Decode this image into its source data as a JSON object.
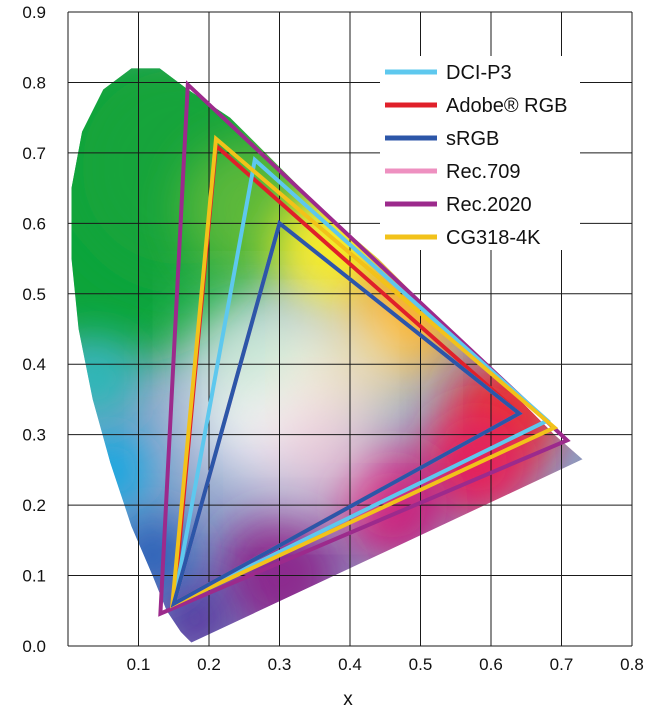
{
  "chart_data": {
    "type": "scatter",
    "title": "",
    "xlabel": "x",
    "ylabel": "",
    "xlim": [
      0,
      0.8
    ],
    "ylim": [
      0,
      0.9
    ],
    "x_ticks": [
      "0.1",
      "0.2",
      "0.3",
      "0.4",
      "0.5",
      "0.6",
      "0.7",
      "0.8"
    ],
    "y_ticks": [
      "0.0",
      "0.1",
      "0.2",
      "0.3",
      "0.4",
      "0.5",
      "0.6",
      "0.7",
      "0.8",
      "0.9"
    ],
    "grid": true,
    "legend_position": "top-right",
    "spectral_locus": [
      [
        0.175,
        0.005
      ],
      [
        0.17,
        0.01
      ],
      [
        0.16,
        0.02
      ],
      [
        0.14,
        0.05
      ],
      [
        0.12,
        0.1
      ],
      [
        0.09,
        0.17
      ],
      [
        0.06,
        0.26
      ],
      [
        0.035,
        0.35
      ],
      [
        0.015,
        0.45
      ],
      [
        0.005,
        0.55
      ],
      [
        0.005,
        0.65
      ],
      [
        0.02,
        0.73
      ],
      [
        0.05,
        0.79
      ],
      [
        0.09,
        0.82
      ],
      [
        0.13,
        0.82
      ],
      [
        0.17,
        0.79
      ],
      [
        0.23,
        0.75
      ],
      [
        0.3,
        0.68
      ],
      [
        0.37,
        0.61
      ],
      [
        0.44,
        0.55
      ],
      [
        0.51,
        0.48
      ],
      [
        0.58,
        0.41
      ],
      [
        0.65,
        0.34
      ],
      [
        0.69,
        0.3
      ],
      [
        0.73,
        0.265
      ]
    ],
    "series": [
      {
        "name": "DCI-P3",
        "color": "#5ec8ee",
        "points": [
          [
            0.68,
            0.32
          ],
          [
            0.265,
            0.69
          ],
          [
            0.15,
            0.06
          ]
        ]
      },
      {
        "name": "Adobe® RGB",
        "color": "#e0202a",
        "points": [
          [
            0.64,
            0.33
          ],
          [
            0.21,
            0.71
          ],
          [
            0.15,
            0.06
          ]
        ]
      },
      {
        "name": "sRGB",
        "color": "#2c56a8",
        "points": [
          [
            0.64,
            0.33
          ],
          [
            0.3,
            0.6
          ],
          [
            0.15,
            0.06
          ]
        ]
      },
      {
        "name": "Rec.709",
        "color": "#ee90c0",
        "points": [
          [
            0.64,
            0.33
          ],
          [
            0.3,
            0.6
          ],
          [
            0.15,
            0.06
          ]
        ]
      },
      {
        "name": "Rec.2020",
        "color": "#9c2a8c",
        "points": [
          [
            0.708,
            0.292
          ],
          [
            0.17,
            0.797
          ],
          [
            0.131,
            0.046
          ]
        ]
      },
      {
        "name": "CG318-4K",
        "color": "#f2c21a",
        "points": [
          [
            0.69,
            0.31
          ],
          [
            0.21,
            0.72
          ],
          [
            0.148,
            0.058
          ]
        ]
      }
    ]
  }
}
